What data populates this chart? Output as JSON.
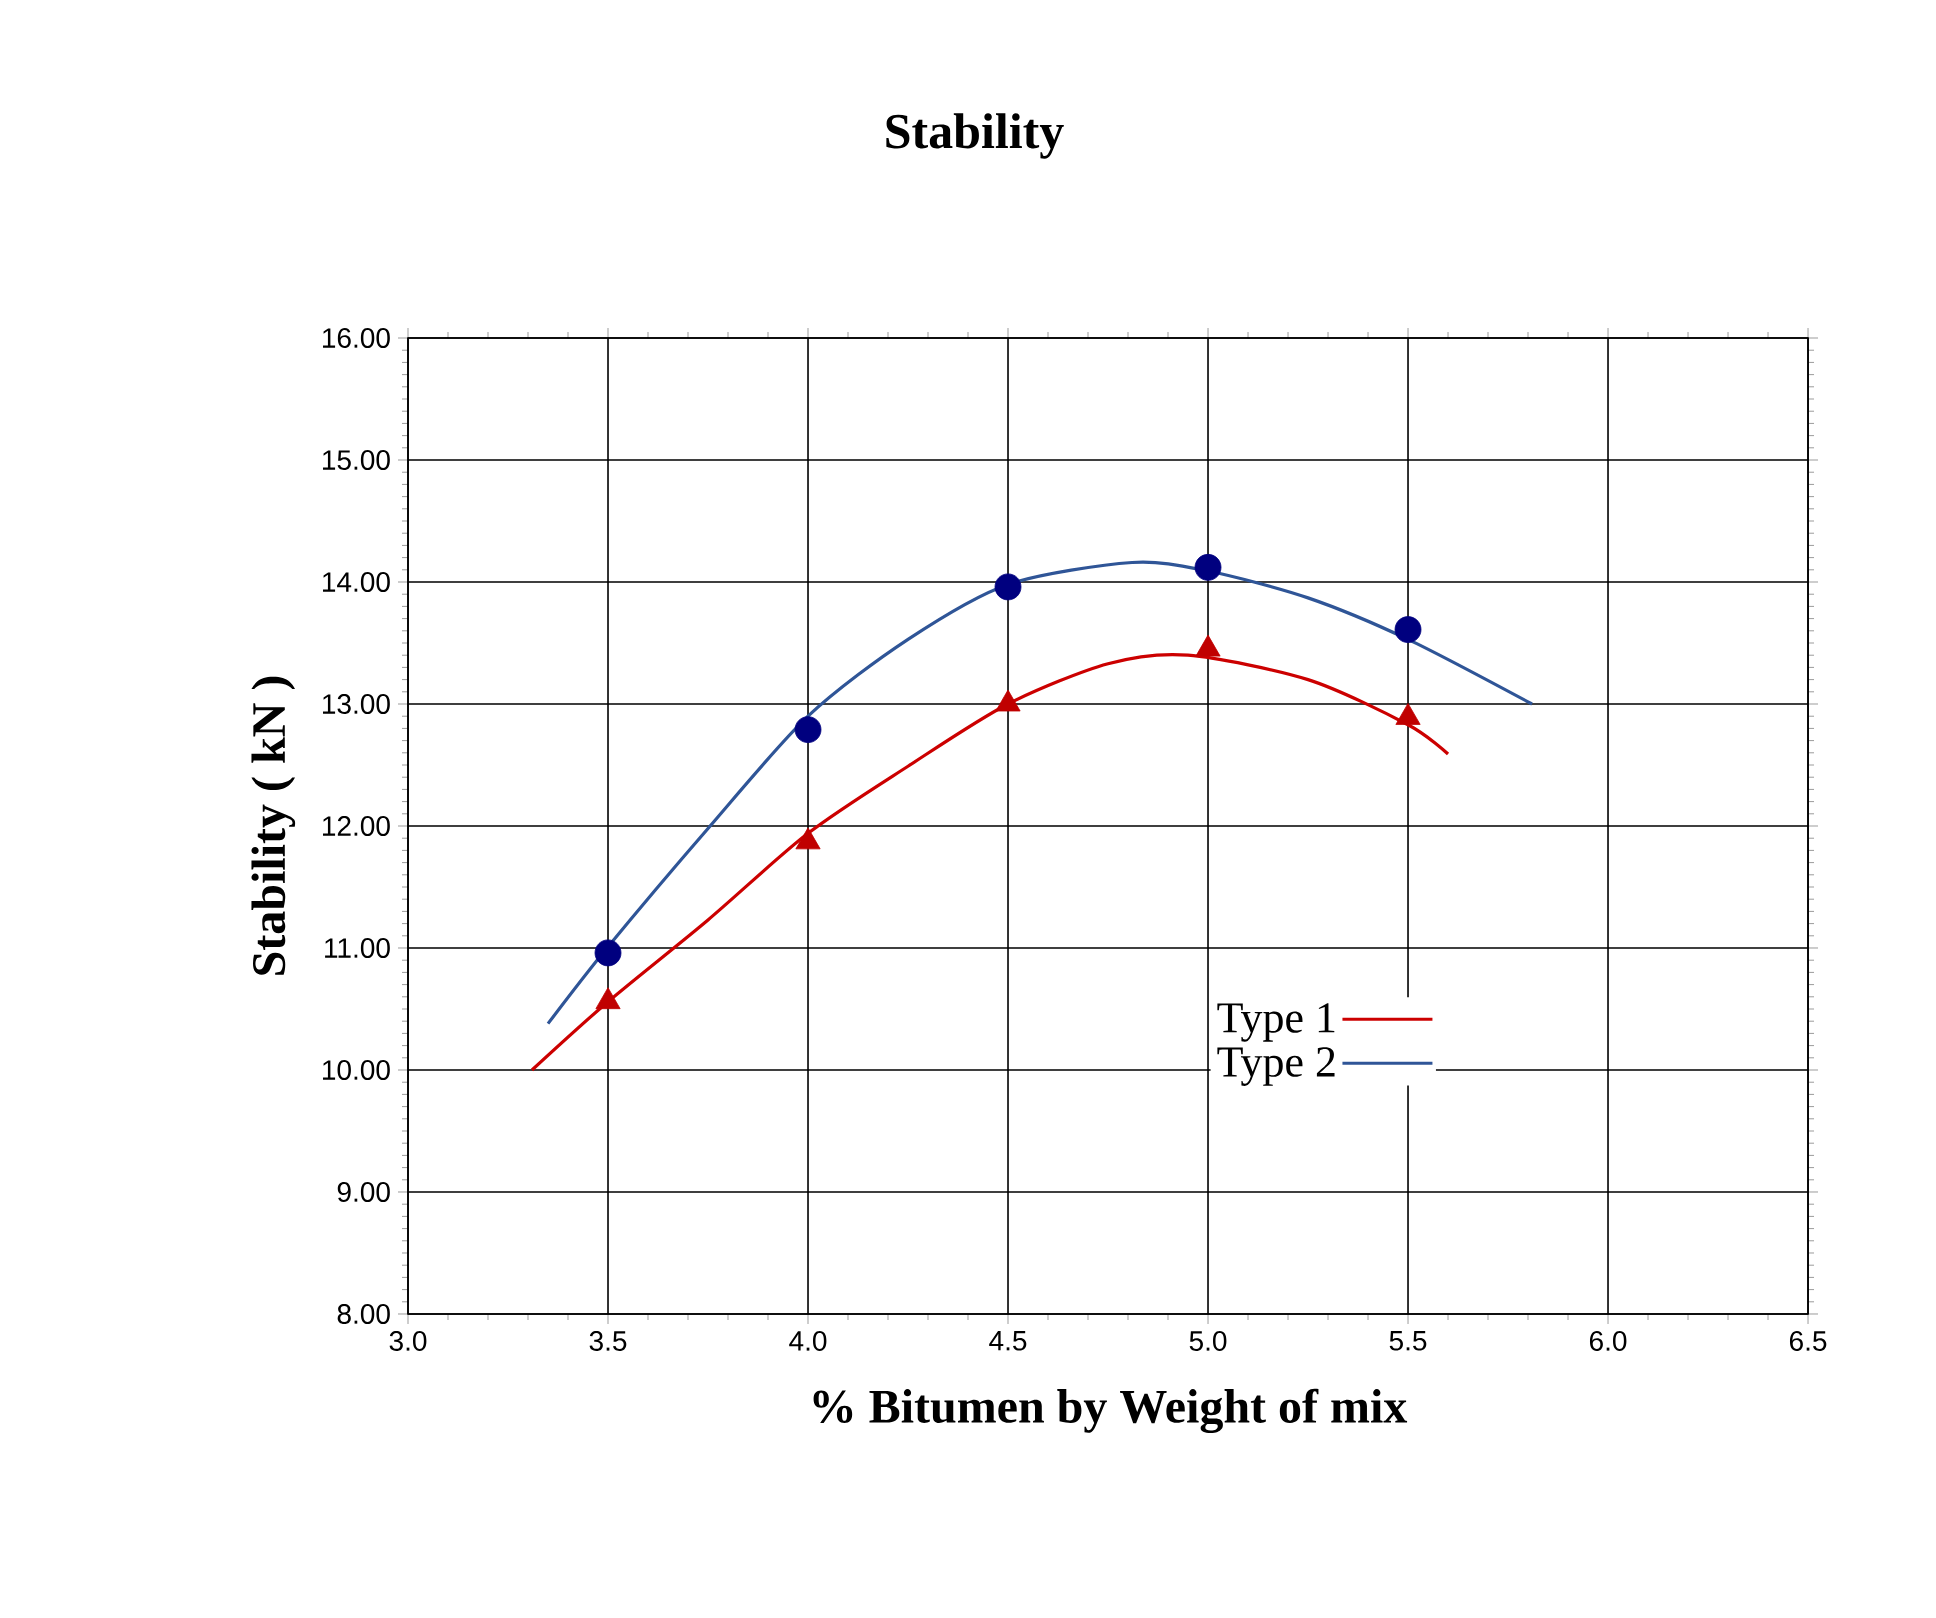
{
  "chart_data": {
    "type": "line",
    "title": "Stability",
    "xlabel": "% Bitumen by Weight of mix",
    "ylabel": "Stability ( kN )",
    "xlim": [
      3.0,
      6.5
    ],
    "ylim": [
      8,
      16
    ],
    "xticks": [
      {
        "value": 3.0,
        "label": "3.0"
      },
      {
        "value": 3.5,
        "label": "3.5"
      },
      {
        "value": 4.0,
        "label": "4.0"
      },
      {
        "value": 4.5,
        "label": "4.5"
      },
      {
        "value": 5.0,
        "label": "5.0"
      },
      {
        "value": 5.5,
        "label": "5.5"
      },
      {
        "value": 6.0,
        "label": "6.0"
      },
      {
        "value": 6.5,
        "label": "6.5"
      }
    ],
    "yticks": [
      {
        "value": 8,
        "label": "8.00"
      },
      {
        "value": 9,
        "label": "9.00"
      },
      {
        "value": 10,
        "label": "10.00"
      },
      {
        "value": 11,
        "label": "11.00"
      },
      {
        "value": 12,
        "label": "12.00"
      },
      {
        "value": 13,
        "label": "13.00"
      },
      {
        "value": 14,
        "label": "14.00"
      },
      {
        "value": 15,
        "label": "15.00"
      },
      {
        "value": 16,
        "label": "16.00"
      }
    ],
    "grid": true,
    "legend": "bottom right",
    "series": [
      {
        "name": "Type 1",
        "color": "#cc0000",
        "marker": "none",
        "x": [
          3.31,
          3.5,
          3.75,
          4.0,
          4.25,
          4.5,
          4.75,
          4.95,
          5.25,
          5.5,
          5.6
        ],
        "values": [
          10.0,
          10.56,
          11.23,
          11.94,
          12.49,
          13.0,
          13.33,
          13.4,
          13.2,
          12.83,
          12.59
        ]
      },
      {
        "name": "Type 2",
        "color": "#2f5597",
        "marker": "none",
        "x": [
          3.35,
          3.5,
          3.75,
          4.0,
          4.25,
          4.5,
          4.81,
          5.0,
          5.25,
          5.5,
          5.81
        ],
        "values": [
          10.38,
          11.01,
          11.98,
          12.9,
          13.53,
          13.98,
          14.16,
          14.09,
          13.87,
          13.53,
          13.0
        ]
      },
      {
        "type": "scatter",
        "color": "#c00000",
        "marker": "triangle",
        "x": [
          3.5,
          4.0,
          4.5,
          5.0,
          5.5
        ],
        "values": [
          10.56,
          11.87,
          13.0,
          13.45,
          12.89
        ]
      },
      {
        "type": "scatter",
        "color": "#00007f",
        "marker": "circle",
        "x": [
          3.5,
          4.0,
          4.5,
          5.0,
          5.5
        ],
        "values": [
          10.96,
          12.79,
          13.96,
          14.12,
          13.61
        ]
      }
    ]
  }
}
